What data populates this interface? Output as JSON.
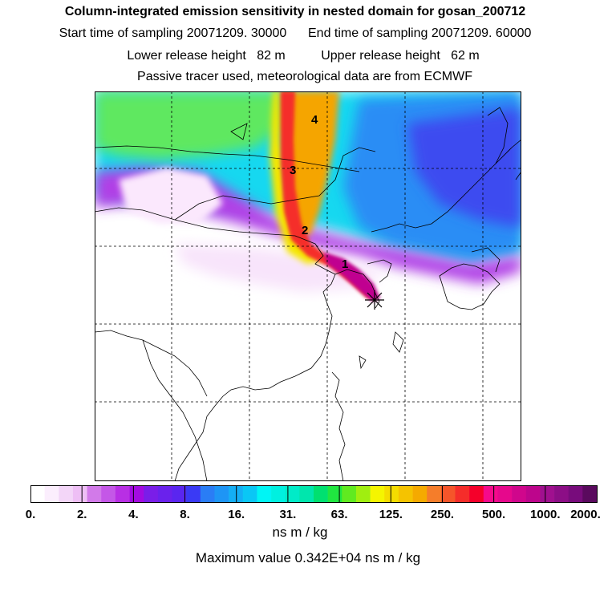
{
  "header": {
    "title": "Column-integrated emission sensitivity in nested domain for gosan_200712",
    "line2_start": "Start time of sampling 20071209. 30000",
    "line2_end": "End time of sampling 20071209. 60000",
    "line3_lower": "Lower release height   82 m",
    "line3_upper": "Upper release height   62 m",
    "line4": "Passive tracer used, meteorological data are from ECMWF"
  },
  "map": {
    "trajectory_labels": [
      "1",
      "2",
      "3",
      "4"
    ],
    "receptor_marker": "star-marker"
  },
  "colorbar": {
    "tick_labels": [
      "0.",
      "2.",
      "4.",
      "8.",
      "16.",
      "31.",
      "63.",
      "125.",
      "250.",
      "500.",
      "1000.",
      "2000."
    ],
    "colors": [
      "#ffffff",
      "#fbeefd",
      "#f3d6f8",
      "#eebff5",
      "#d27ae9",
      "#c457e7",
      "#b82fe4",
      "#a30be0",
      "#7a1ee8",
      "#6a22ec",
      "#5a26f0",
      "#3a3af5",
      "#2a7df5",
      "#1e95f5",
      "#14aef5",
      "#0ac7f5",
      "#00f5f5",
      "#00f0e0",
      "#00ebc8",
      "#00e6ad",
      "#00e070",
      "#20e640",
      "#60ea20",
      "#a0ee10",
      "#f5f500",
      "#f5dc00",
      "#f5c300",
      "#f5aa00",
      "#f57d2a",
      "#f5552a",
      "#f52d2a",
      "#f5002a",
      "#f50a8c",
      "#e6088c",
      "#d0068c",
      "#bd058c",
      "#a0108f",
      "#8c0e86",
      "#780c7c",
      "#5a0a5e"
    ]
  },
  "footer": {
    "units": "ns m / kg",
    "max_value": "Maximum value  0.342E+04 ns m / kg"
  }
}
